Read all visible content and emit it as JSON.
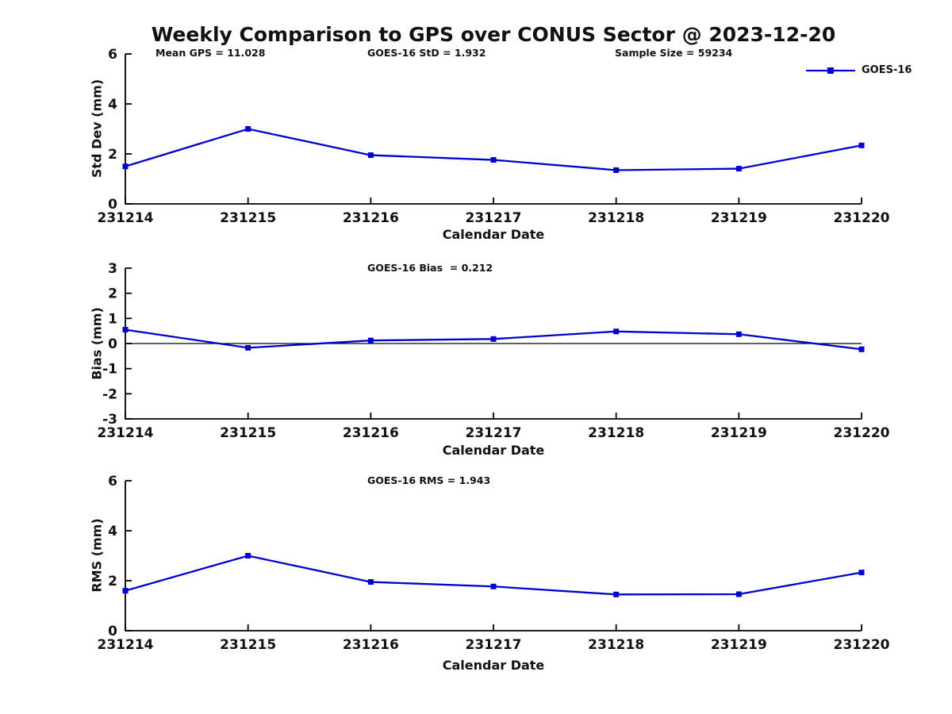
{
  "title": "Weekly Comparison to GPS over CONUS Sector @ 2023-12-20",
  "accent_color": "#0000cd",
  "chart_data": [
    {
      "type": "line",
      "id": "std-dev",
      "ylabel": "Std Dev (mm)",
      "xlabel": "Calendar Date",
      "x": [
        "231214",
        "231215",
        "231216",
        "231217",
        "231218",
        "231219",
        "231220"
      ],
      "series": [
        {
          "name": "GOES-16",
          "values": [
            1.5,
            3.0,
            1.95,
            1.76,
            1.35,
            1.41,
            2.34
          ]
        }
      ],
      "ylim": [
        0,
        6
      ],
      "yticks": [
        0,
        2,
        4,
        6
      ],
      "zero_line": false,
      "grid": false,
      "line_color": "#0000cd",
      "marker": "square",
      "annotations": [
        "Mean GPS = 11.028",
        "GOES-16 StD = 1.932",
        "Sample Size = 59234"
      ],
      "legend": {
        "label": "GOES-16",
        "position": "top-right"
      }
    },
    {
      "type": "line",
      "id": "bias",
      "ylabel": "Bias (mm)",
      "xlabel": "Calendar Date",
      "x": [
        "231214",
        "231215",
        "231216",
        "231217",
        "231218",
        "231219",
        "231220"
      ],
      "series": [
        {
          "name": "GOES-16",
          "values": [
            0.55,
            -0.17,
            0.12,
            0.18,
            0.48,
            0.37,
            -0.23
          ]
        }
      ],
      "ylim": [
        -3,
        3
      ],
      "yticks": [
        -3,
        -2,
        -1,
        0,
        1,
        2,
        3
      ],
      "zero_line": true,
      "grid": false,
      "line_color": "#0000cd",
      "marker": "square",
      "annotations": [
        "GOES-16 Bias  = 0.212"
      ]
    },
    {
      "type": "line",
      "id": "rms",
      "ylabel": "RMS (mm)",
      "xlabel": "Calendar Date",
      "x": [
        "231214",
        "231215",
        "231216",
        "231217",
        "231218",
        "231219",
        "231220"
      ],
      "series": [
        {
          "name": "GOES-16",
          "values": [
            1.6,
            3.0,
            1.95,
            1.77,
            1.45,
            1.46,
            2.33
          ]
        }
      ],
      "ylim": [
        0,
        6
      ],
      "yticks": [
        0,
        2,
        4,
        6
      ],
      "zero_line": false,
      "grid": false,
      "line_color": "#0000cd",
      "marker": "square",
      "annotations": [
        "GOES-16 RMS = 1.943"
      ]
    }
  ]
}
